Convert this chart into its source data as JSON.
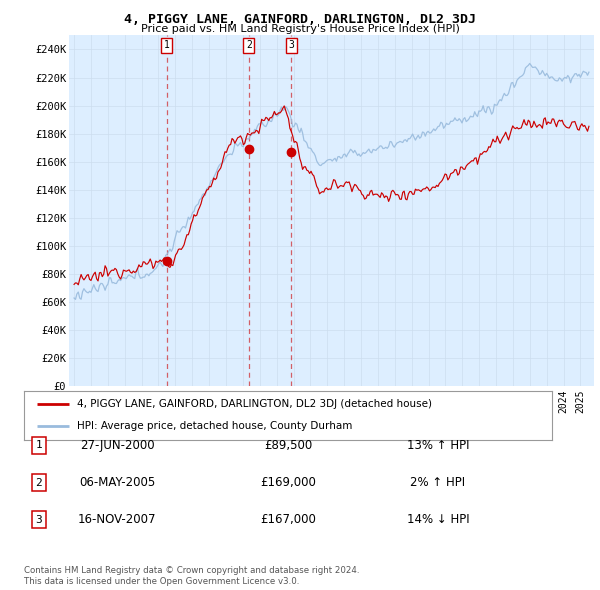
{
  "title": "4, PIGGY LANE, GAINFORD, DARLINGTON, DL2 3DJ",
  "subtitle": "Price paid vs. HM Land Registry's House Price Index (HPI)",
  "yticks": [
    0,
    20000,
    40000,
    60000,
    80000,
    100000,
    120000,
    140000,
    160000,
    180000,
    200000,
    220000,
    240000
  ],
  "ytick_labels": [
    "£0",
    "£20K",
    "£40K",
    "£60K",
    "£80K",
    "£100K",
    "£120K",
    "£140K",
    "£160K",
    "£180K",
    "£200K",
    "£220K",
    "£240K"
  ],
  "ylim": [
    0,
    250000
  ],
  "legend_line1": "4, PIGGY LANE, GAINFORD, DARLINGTON, DL2 3DJ (detached house)",
  "legend_line2": "HPI: Average price, detached house, County Durham",
  "red_color": "#cc0000",
  "blue_color": "#99bbdd",
  "chart_bg": "#ddeeff",
  "transactions": [
    {
      "label": "1",
      "date": "27-JUN-2000",
      "price": 89500,
      "hpi_diff": "13% ↑ HPI",
      "year": 2000.49
    },
    {
      "label": "2",
      "date": "06-MAY-2005",
      "price": 169000,
      "hpi_diff": "2% ↑ HPI",
      "year": 2005.35
    },
    {
      "label": "3",
      "date": "16-NOV-2007",
      "price": 167000,
      "hpi_diff": "14% ↓ HPI",
      "year": 2007.88
    }
  ],
  "footer_line1": "Contains HM Land Registry data © Crown copyright and database right 2024.",
  "footer_line2": "This data is licensed under the Open Government Licence v3.0.",
  "background_color": "#ffffff",
  "grid_color": "#ccddee"
}
